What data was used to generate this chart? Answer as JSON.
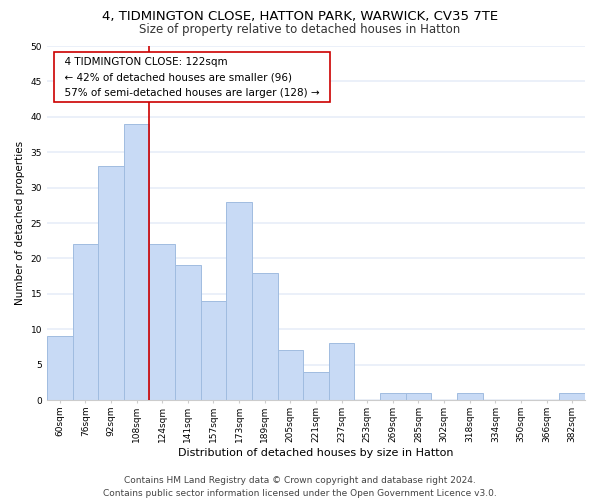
{
  "title1": "4, TIDMINGTON CLOSE, HATTON PARK, WARWICK, CV35 7TE",
  "title2": "Size of property relative to detached houses in Hatton",
  "xlabel": "Distribution of detached houses by size in Hatton",
  "ylabel": "Number of detached properties",
  "bar_labels": [
    "60sqm",
    "76sqm",
    "92sqm",
    "108sqm",
    "124sqm",
    "141sqm",
    "157sqm",
    "173sqm",
    "189sqm",
    "205sqm",
    "221sqm",
    "237sqm",
    "253sqm",
    "269sqm",
    "285sqm",
    "302sqm",
    "318sqm",
    "334sqm",
    "350sqm",
    "366sqm",
    "382sqm"
  ],
  "bar_values": [
    9,
    22,
    33,
    39,
    22,
    19,
    14,
    28,
    18,
    7,
    4,
    8,
    0,
    1,
    1,
    0,
    1,
    0,
    0,
    0,
    1
  ],
  "bar_color": "#c8daf5",
  "bar_edge_color": "#a0bce0",
  "vline_x": 4,
  "vline_color": "#cc0000",
  "annotation_title": "4 TIDMINGTON CLOSE: 122sqm",
  "annotation_line1": "← 42% of detached houses are smaller (96)",
  "annotation_line2": "57% of semi-detached houses are larger (128) →",
  "annotation_box_color": "#ffffff",
  "annotation_box_edge": "#cc0000",
  "ylim": [
    0,
    50
  ],
  "yticks": [
    0,
    5,
    10,
    15,
    20,
    25,
    30,
    35,
    40,
    45,
    50
  ],
  "footer1": "Contains HM Land Registry data © Crown copyright and database right 2024.",
  "footer2": "Contains public sector information licensed under the Open Government Licence v3.0.",
  "bg_color": "#ffffff",
  "plot_bg_color": "#ffffff",
  "grid_color": "#e8eef8",
  "title1_fontsize": 9.5,
  "title2_fontsize": 8.5,
  "xlabel_fontsize": 8,
  "ylabel_fontsize": 7.5,
  "tick_fontsize": 6.5,
  "annotation_title_fontsize": 8,
  "annotation_body_fontsize": 7.5,
  "footer_fontsize": 6.5
}
